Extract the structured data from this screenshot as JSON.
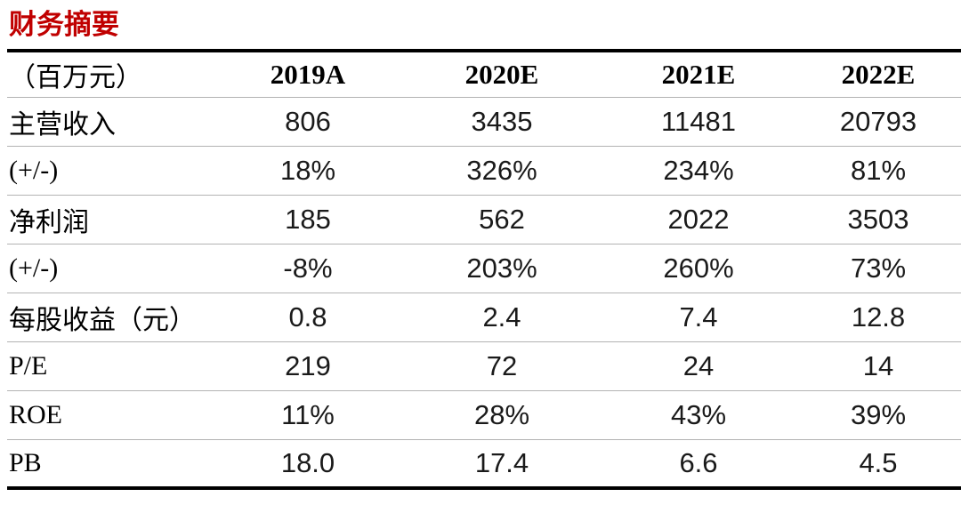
{
  "title": {
    "text": "财务摘要"
  },
  "colors": {
    "title_red": "#C00000",
    "heavy_border": "#000000",
    "row_separator": "#b3b3b3",
    "data_text": "#1a1a1a"
  },
  "table": {
    "unit_header": "（百万元）",
    "year_columns": [
      "2019A",
      "2020E",
      "2021E",
      "2022E"
    ],
    "rows": [
      {
        "label": "主营收入",
        "values": [
          "806",
          "3435",
          "11481",
          "20793"
        ]
      },
      {
        "label": "(+/-)",
        "values": [
          "18%",
          "326%",
          "234%",
          "81%"
        ]
      },
      {
        "label": "净利润",
        "values": [
          "185",
          "562",
          "2022",
          "3503"
        ]
      },
      {
        "label": "(+/-)",
        "values": [
          "-8%",
          "203%",
          "260%",
          "73%"
        ]
      },
      {
        "label": "每股收益（元）",
        "values": [
          "0.8",
          "2.4",
          "7.4",
          "12.8"
        ]
      },
      {
        "label": "P/E",
        "values": [
          "219",
          "72",
          "24",
          "14"
        ]
      },
      {
        "label": "ROE",
        "values": [
          "11%",
          "28%",
          "43%",
          "39%"
        ]
      },
      {
        "label": "PB",
        "values": [
          "18.0",
          "17.4",
          "6.6",
          "4.5"
        ]
      }
    ]
  }
}
